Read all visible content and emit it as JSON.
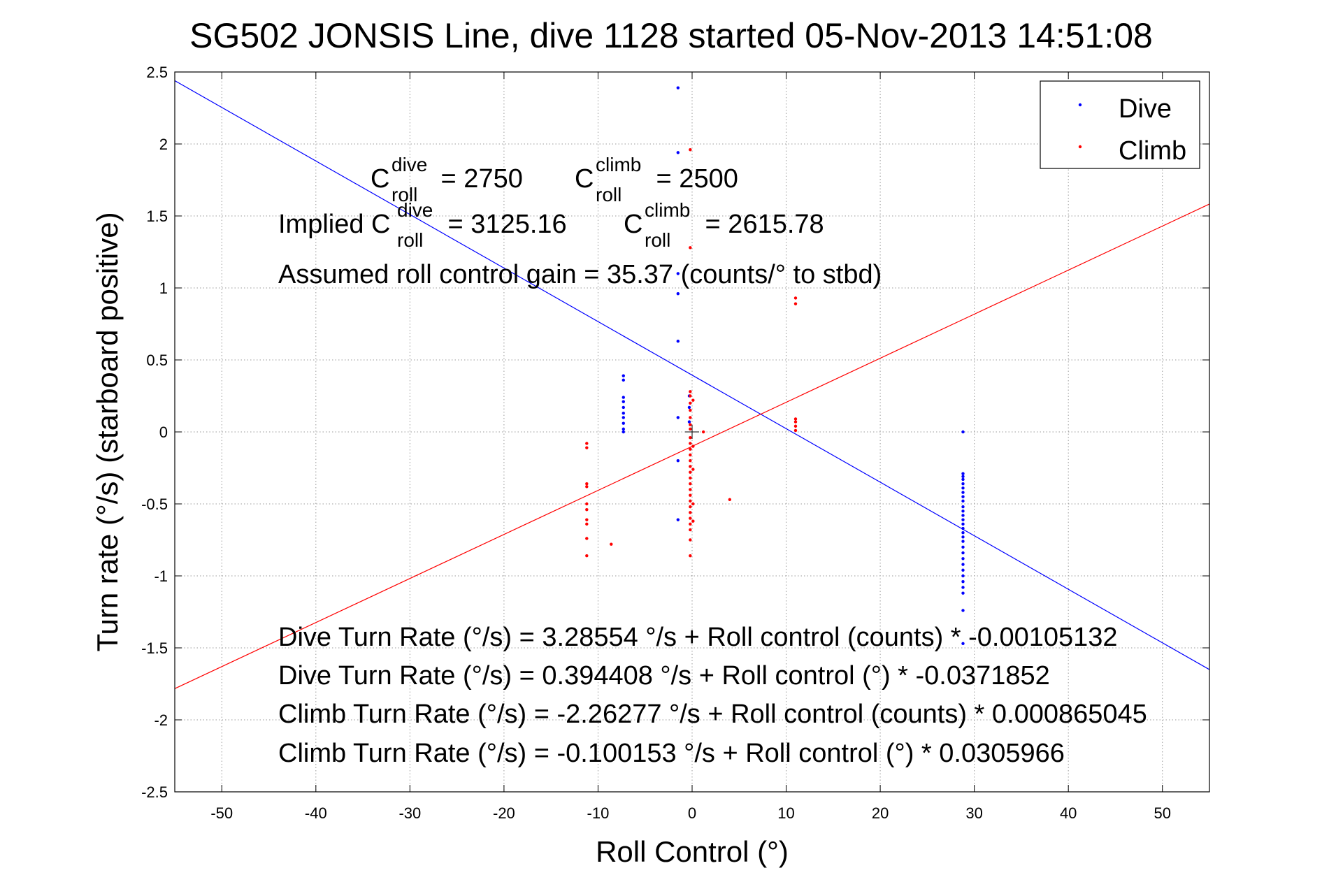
{
  "chart_data": {
    "type": "scatter",
    "title": "SG502 JONSIS Line, dive 1128 started 05-Nov-2013 14:51:08",
    "xlabel": "Roll Control (°)",
    "ylabel": "Turn rate (°/s) (starboard positive)",
    "xlim": [
      -55,
      55
    ],
    "ylim": [
      -2.5,
      2.5
    ],
    "grid": true,
    "legend_position": "top-right",
    "x_ticks": [
      -50,
      -40,
      -30,
      -20,
      -10,
      0,
      10,
      20,
      30,
      40,
      50
    ],
    "y_ticks": [
      -2.5,
      -2,
      -1.5,
      -1,
      -0.5,
      0,
      0.5,
      1,
      1.5,
      2,
      2.5
    ],
    "x_tick_labels": [
      "-50",
      "-40",
      "-30",
      "-20",
      "-10",
      "0",
      "10",
      "20",
      "30",
      "40",
      "50"
    ],
    "y_tick_labels": [
      "-2.5",
      "-2",
      "-1.5",
      "-1",
      "-0.5",
      "0",
      "0.5",
      "1",
      "1.5",
      "2",
      "2.5"
    ],
    "series": [
      {
        "name": "Dive",
        "color": "#0000ff",
        "points": [
          [
            -1.5,
            2.39
          ],
          [
            -1.5,
            1.94
          ],
          [
            -1.5,
            0.96
          ],
          [
            -1.5,
            0.63
          ],
          [
            -1.5,
            0.1
          ],
          [
            -1.5,
            -0.2
          ],
          [
            -1.5,
            -0.61
          ],
          [
            -1.5,
            1.1
          ],
          [
            -7.3,
            0.39
          ],
          [
            -7.3,
            0.36
          ],
          [
            -7.3,
            0.24
          ],
          [
            -7.3,
            0.21
          ],
          [
            -7.3,
            0.17
          ],
          [
            -7.3,
            0.13
          ],
          [
            -7.3,
            0.1
          ],
          [
            -7.3,
            0.06
          ],
          [
            -7.3,
            0.02
          ],
          [
            -7.3,
            0.0
          ],
          [
            -0.3,
            0.25
          ],
          [
            -0.3,
            0.17
          ],
          [
            -0.3,
            0.07
          ],
          [
            28.8,
            0.0
          ],
          [
            28.8,
            -0.29
          ],
          [
            28.8,
            -0.31
          ],
          [
            28.8,
            -0.33
          ],
          [
            28.8,
            -0.36
          ],
          [
            28.8,
            -0.39
          ],
          [
            28.8,
            -0.42
          ],
          [
            28.8,
            -0.45
          ],
          [
            28.8,
            -0.48
          ],
          [
            28.8,
            -0.52
          ],
          [
            28.8,
            -0.55
          ],
          [
            28.8,
            -0.58
          ],
          [
            28.8,
            -0.61
          ],
          [
            28.8,
            -0.64
          ],
          [
            28.8,
            -0.67
          ],
          [
            28.8,
            -0.7
          ],
          [
            28.8,
            -0.73
          ],
          [
            28.8,
            -0.76
          ],
          [
            28.8,
            -0.8
          ],
          [
            28.8,
            -0.84
          ],
          [
            28.8,
            -0.88
          ],
          [
            28.8,
            -0.92
          ],
          [
            28.8,
            -0.96
          ],
          [
            28.8,
            -1.0
          ],
          [
            28.8,
            -1.04
          ],
          [
            28.8,
            -1.08
          ],
          [
            28.8,
            -1.12
          ],
          [
            28.8,
            -1.24
          ],
          [
            28.8,
            -1.47
          ]
        ],
        "fit_intercept": 0.394408,
        "fit_slope": -0.0371852
      },
      {
        "name": "Climb",
        "color": "#ff0000",
        "points": [
          [
            -11.2,
            -0.08
          ],
          [
            -11.2,
            -0.11
          ],
          [
            -11.2,
            -0.36
          ],
          [
            -11.2,
            -0.38
          ],
          [
            -11.2,
            -0.5
          ],
          [
            -11.2,
            -0.54
          ],
          [
            -11.2,
            -0.61
          ],
          [
            -11.2,
            -0.64
          ],
          [
            -11.2,
            -0.74
          ],
          [
            -11.2,
            -0.86
          ],
          [
            -8.6,
            -0.78
          ],
          [
            -0.2,
            1.96
          ],
          [
            -0.2,
            1.28
          ],
          [
            -0.2,
            0.28
          ],
          [
            -0.2,
            0.25
          ],
          [
            -0.2,
            0.2
          ],
          [
            -0.2,
            0.15
          ],
          [
            -0.2,
            0.1
          ],
          [
            -0.2,
            0.05
          ],
          [
            -0.2,
            0.02
          ],
          [
            -0.2,
            -0.04
          ],
          [
            -0.2,
            -0.08
          ],
          [
            -0.2,
            -0.12
          ],
          [
            -0.2,
            -0.16
          ],
          [
            -0.2,
            -0.2
          ],
          [
            -0.2,
            -0.24
          ],
          [
            -0.2,
            -0.28
          ],
          [
            -0.2,
            -0.32
          ],
          [
            -0.2,
            -0.36
          ],
          [
            -0.2,
            -0.4
          ],
          [
            -0.2,
            -0.44
          ],
          [
            -0.2,
            -0.48
          ],
          [
            -0.2,
            -0.52
          ],
          [
            -0.2,
            -0.56
          ],
          [
            -0.2,
            -0.6
          ],
          [
            -0.2,
            -0.64
          ],
          [
            -0.2,
            -0.68
          ],
          [
            -0.2,
            -0.75
          ],
          [
            -0.2,
            -0.86
          ],
          [
            0.1,
            0.22
          ],
          [
            0.1,
            -0.1
          ],
          [
            0.1,
            -0.26
          ],
          [
            0.1,
            -0.5
          ],
          [
            0.1,
            -0.62
          ],
          [
            1.2,
            0.0
          ],
          [
            4.0,
            -0.47
          ],
          [
            11.0,
            0.93
          ],
          [
            11.0,
            0.89
          ],
          [
            11.0,
            0.09
          ],
          [
            11.0,
            0.07
          ],
          [
            11.0,
            0.04
          ],
          [
            11.0,
            0.01
          ]
        ],
        "fit_intercept": -0.100153,
        "fit_slope": 0.0305966
      }
    ],
    "legend": {
      "dive_label": "Dive",
      "climb_label": "Climb"
    },
    "annotations": {
      "c_dive_base": "C",
      "c_dive_sup": "dive",
      "c_dive_sub": "roll",
      "c_dive_value": " = 2750",
      "c_climb_base": "C",
      "c_climb_sup": "climb",
      "c_climb_sub": "roll",
      "c_climb_value": " = 2500",
      "implied_prefix": "Implied C",
      "implied_dive_sup": "dive",
      "implied_dive_sub": "roll",
      "implied_dive_value": " = 3125.16",
      "implied_climb_base": "C",
      "implied_climb_sup": "climb",
      "implied_climb_sub": "roll",
      "implied_climb_value": " = 2615.78",
      "gain": "Assumed roll control gain = 35.37 (counts/° to stbd)",
      "eq1": "Dive Turn Rate (°/s) = 3.28554 °/s + Roll control (counts) * -0.00105132",
      "eq2": "Dive Turn Rate (°/s) = 0.394408 °/s + Roll control (°) * -0.0371852",
      "eq3": "Climb Turn Rate (°/s) = -2.26277 °/s + Roll control (counts) * 0.000865045",
      "eq4": "Climb Turn Rate (°/s) = -0.100153 °/s + Roll control (°) * 0.0305966"
    }
  }
}
